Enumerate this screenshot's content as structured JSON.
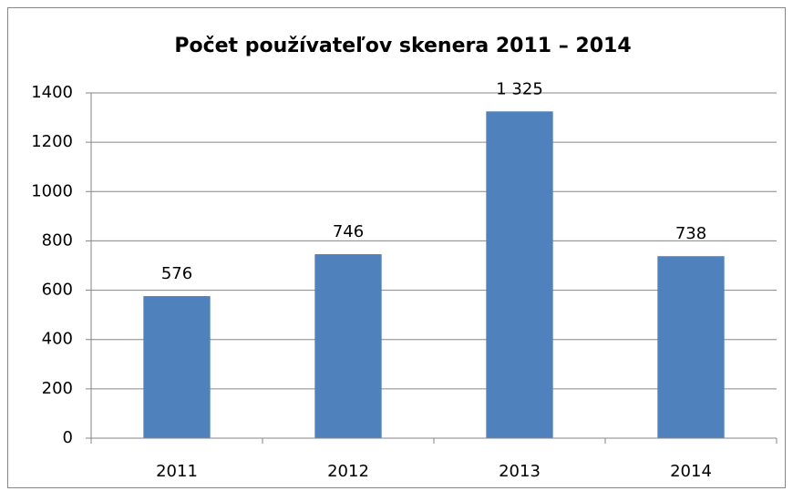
{
  "chart_data": {
    "type": "bar",
    "title": "Počet používateľov skenera 2011 – 2014",
    "categories": [
      "2011",
      "2012",
      "2013",
      "2014"
    ],
    "values": [
      576,
      746,
      1325,
      738
    ],
    "value_labels": [
      "576",
      "746",
      "1 325",
      "738"
    ],
    "color": "#4f81bd",
    "ylim": [
      0,
      1400
    ],
    "yticks": [
      0,
      200,
      400,
      600,
      800,
      1000,
      1200,
      1400
    ],
    "grid": true
  }
}
